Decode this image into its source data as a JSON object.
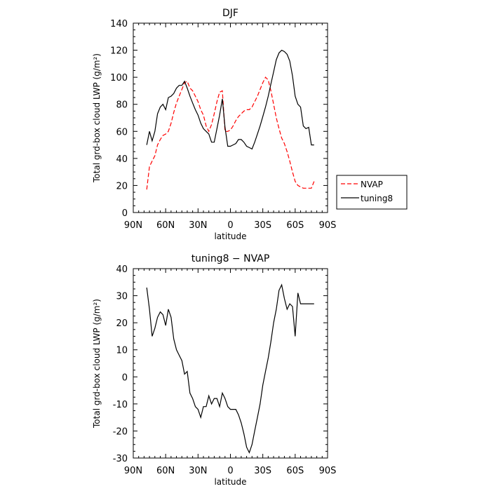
{
  "chart_data": [
    {
      "type": "line",
      "title": "DJF",
      "xlabel": "latitude",
      "ylabel": "Total grd-box cloud LWP (g/m²)",
      "xlim": [
        90,
        -90
      ],
      "ylim": [
        0,
        140
      ],
      "xticks": [
        90,
        60,
        30,
        0,
        -30,
        -60,
        -90
      ],
      "xtick_labels": [
        "90N",
        "60N",
        "30N",
        "0",
        "30S",
        "60S",
        "90S"
      ],
      "yticks": [
        0,
        20,
        40,
        60,
        80,
        100,
        120,
        140
      ],
      "legend_position": "right",
      "grid": false,
      "series": [
        {
          "name": "NVAP",
          "color": "#ff0000",
          "dash": "dashed",
          "x": [
            77.5,
            75,
            72.5,
            70,
            67.5,
            65,
            62.5,
            60,
            57.5,
            55,
            52.5,
            50,
            47.5,
            45,
            42.5,
            40,
            37.5,
            35,
            32.5,
            30,
            27.5,
            25,
            22.5,
            20,
            17.5,
            15,
            12.5,
            10,
            7.5,
            5,
            2.5,
            0,
            -2.5,
            -5,
            -7.5,
            -10,
            -12.5,
            -15,
            -17.5,
            -20,
            -22.5,
            -25,
            -27.5,
            -30,
            -32.5,
            -35,
            -37.5,
            -40,
            -42.5,
            -45,
            -47.5,
            -50,
            -52.5,
            -55,
            -57.5,
            -60,
            -62.5,
            -65,
            -67.5,
            -70,
            -72.5,
            -75,
            -77.5
          ],
          "values": [
            17,
            34,
            38,
            42,
            50,
            54,
            57,
            58,
            60,
            66,
            74,
            81,
            86,
            91,
            96,
            97,
            92,
            90,
            86,
            82,
            76,
            72,
            64,
            60,
            65,
            73,
            82,
            89,
            90,
            60,
            60,
            61,
            64,
            68,
            71,
            73,
            75,
            76,
            76,
            78,
            82,
            86,
            91,
            96,
            100,
            98,
            90,
            80,
            70,
            62,
            55,
            51,
            45,
            38,
            30,
            23,
            20,
            19,
            18,
            18,
            18,
            18,
            23
          ]
        },
        {
          "name": "tuning8",
          "color": "#000000",
          "dash": "solid",
          "x": [
            77.5,
            75,
            72.5,
            70,
            67.5,
            65,
            62.5,
            60,
            57.5,
            55,
            52.5,
            50,
            47.5,
            45,
            42.5,
            40,
            37.5,
            35,
            32.5,
            30,
            27.5,
            25,
            22.5,
            20,
            17.5,
            15,
            12.5,
            10,
            7.5,
            5,
            2.5,
            0,
            -2.5,
            -5,
            -7.5,
            -10,
            -12.5,
            -15,
            -17.5,
            -20,
            -22.5,
            -25,
            -27.5,
            -30,
            -32.5,
            -35,
            -37.5,
            -40,
            -42.5,
            -45,
            -47.5,
            -50,
            -52.5,
            -55,
            -57.5,
            -60,
            -62.5,
            -65,
            -67.5,
            -70,
            -72.5,
            -75,
            -77.5
          ],
          "values": [
            50,
            60,
            53,
            60,
            73,
            78,
            80,
            76,
            85,
            86,
            88,
            92,
            94,
            94,
            97,
            92,
            86,
            81,
            76,
            72,
            66,
            62,
            60,
            58,
            52,
            52,
            62,
            72,
            84,
            63,
            49,
            49,
            50,
            51,
            54,
            54,
            52,
            49,
            48,
            47,
            52,
            58,
            64,
            71,
            78,
            86,
            95,
            104,
            113,
            118,
            120,
            119,
            117,
            112,
            101,
            86,
            80,
            78,
            64,
            62,
            63,
            50,
            50
          ]
        }
      ]
    },
    {
      "type": "line",
      "title": "tuning8 − NVAP",
      "xlabel": "latitude",
      "ylabel": "Total grd-box cloud LWP (g/m²)",
      "xlim": [
        90,
        -90
      ],
      "ylim": [
        -30,
        40
      ],
      "xticks": [
        90,
        60,
        30,
        0,
        -30,
        -60,
        -90
      ],
      "xtick_labels": [
        "90N",
        "60N",
        "30N",
        "0",
        "30S",
        "60S",
        "90S"
      ],
      "yticks": [
        -30,
        -20,
        -10,
        0,
        10,
        20,
        30,
        40
      ],
      "grid": false,
      "series": [
        {
          "color": "#000000",
          "dash": "solid",
          "x": [
            77.5,
            75,
            72.5,
            70,
            67.5,
            65,
            62.5,
            60,
            57.5,
            55,
            52.5,
            50,
            47.5,
            45,
            42.5,
            40,
            37.5,
            35,
            32.5,
            30,
            27.5,
            25,
            22.5,
            20,
            17.5,
            15,
            12.5,
            10,
            7.5,
            5,
            2.5,
            0,
            -2.5,
            -5,
            -7.5,
            -10,
            -12.5,
            -15,
            -17.5,
            -20,
            -22.5,
            -25,
            -27.5,
            -30,
            -32.5,
            -35,
            -37.5,
            -40,
            -42.5,
            -45,
            -47.5,
            -50,
            -52.5,
            -55,
            -57.5,
            -60,
            -62.5,
            -65,
            -67.5,
            -70,
            -72.5,
            -75,
            -77.5
          ],
          "values": [
            33,
            25,
            15,
            18,
            22,
            24,
            23,
            19,
            25,
            22,
            14,
            10,
            8,
            6,
            1,
            2,
            -6,
            -8,
            -11,
            -12,
            -15,
            -11,
            -11,
            -7,
            -10,
            -8,
            -8,
            -11,
            -6,
            -8,
            -11,
            -12,
            -12,
            -12,
            -14,
            -17,
            -21,
            -26,
            -28,
            -25,
            -20,
            -15,
            -10,
            -3,
            2,
            7,
            13,
            20,
            25,
            32,
            34,
            29,
            25,
            27,
            26,
            15,
            31,
            27,
            27,
            27,
            27,
            27,
            27
          ]
        }
      ]
    }
  ]
}
